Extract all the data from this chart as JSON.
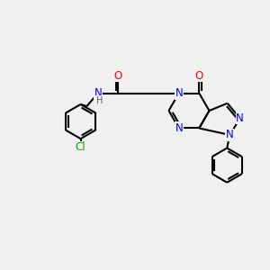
{
  "bg_color": "#f0f0f0",
  "bond_color": "#000000",
  "bond_lw": 1.5,
  "atom_colors": {
    "N": "#0000ff",
    "O": "#ff0000",
    "Cl": "#00aa00",
    "C": "#000000",
    "H": "#555555"
  },
  "font_size_atom": 8.5,
  "font_size_small": 7.0,
  "figsize": [
    3.0,
    3.0
  ],
  "dpi": 100
}
